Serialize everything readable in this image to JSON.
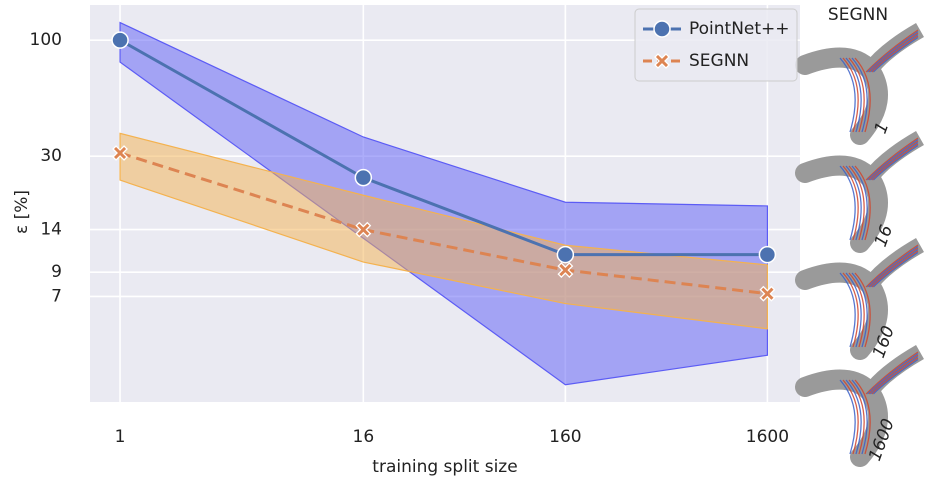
{
  "chart_data": {
    "type": "line",
    "x_label": "training split size",
    "y_label": "ε [%]",
    "x": [
      1,
      16,
      160,
      1600
    ],
    "xlim": [
      0.71,
      2320
    ],
    "xticks": [
      1,
      16,
      160,
      1600
    ],
    "xscale": "log",
    "ylim": [
      2.34,
      144
    ],
    "yticks": [
      100,
      30,
      14,
      9,
      7
    ],
    "yscale": "log",
    "grid": true,
    "legend": "upper right",
    "series": [
      {
        "name": "PointNet++",
        "color": "#4c72b0",
        "band_color": "#5c5cf5",
        "marker": "circle",
        "dashed": false,
        "values": [
          100,
          24,
          10.8,
          10.8
        ],
        "upper": [
          120,
          36.6,
          18.6,
          17.9
        ],
        "lower": [
          79.6,
          12.8,
          2.8,
          3.8
        ]
      },
      {
        "name": "SEGNN",
        "color": "#dd8452",
        "band_color": "#f4b24f",
        "marker": "x",
        "dashed": true,
        "values": [
          31,
          14,
          9.2,
          7.2
        ],
        "upper": [
          38,
          20,
          11.9,
          9.7
        ],
        "lower": [
          23.4,
          10,
          6.5,
          5.0
        ]
      }
    ]
  },
  "inset": {
    "title": "SEGNN",
    "labels": [
      "1",
      "16",
      "160",
      "1600"
    ]
  }
}
